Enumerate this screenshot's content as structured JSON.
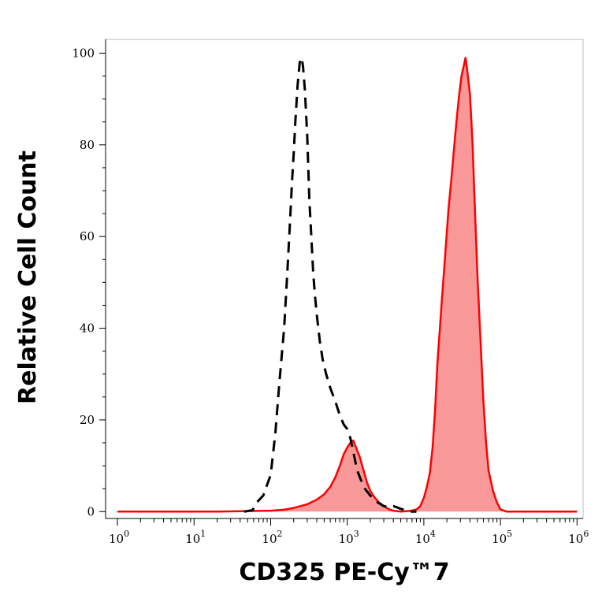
{
  "chart_data": {
    "type": "area",
    "xlabel": "CD325 PE-Cy™7",
    "ylabel": "Relative Cell Count",
    "xscale": "log",
    "xlim": [
      0.7,
      1200000
    ],
    "ylim": [
      -1.5,
      103
    ],
    "x_ticks": [
      {
        "value": 1,
        "base": "10",
        "exp": "0"
      },
      {
        "value": 10,
        "base": "10",
        "exp": "1"
      },
      {
        "value": 100,
        "base": "10",
        "exp": "2"
      },
      {
        "value": 1000,
        "base": "10",
        "exp": "3"
      },
      {
        "value": 10000,
        "base": "10",
        "exp": "4"
      },
      {
        "value": 100000,
        "base": "10",
        "exp": "5"
      },
      {
        "value": 1000000,
        "base": "10",
        "exp": "6"
      }
    ],
    "y_ticks": [
      {
        "value": 0,
        "label": "0"
      },
      {
        "value": 20,
        "label": "20"
      },
      {
        "value": 40,
        "label": "40"
      },
      {
        "value": 60,
        "label": "60"
      },
      {
        "value": 80,
        "label": "80"
      },
      {
        "value": 100,
        "label": "100"
      }
    ],
    "grid": false,
    "legend": "none",
    "series": [
      {
        "style": "dashed-line",
        "color": "#000000",
        "x": [
          45,
          58,
          66,
          80,
          100,
          115,
          130,
          150,
          165,
          180,
          190,
          200,
          210,
          225,
          240,
          255,
          265,
          280,
          300,
          320,
          340,
          360,
          380,
          400,
          440,
          480,
          530,
          600,
          700,
          800,
          900,
          1000,
          1100,
          1200,
          1350,
          1500,
          1700,
          2000,
          2500,
          3000,
          3500,
          4000,
          4500,
          5000,
          6000,
          7000,
          8000
        ],
        "y": [
          0,
          0.3,
          2,
          3.5,
          8,
          17,
          28,
          40,
          52,
          64,
          72,
          78,
          85,
          93,
          98,
          99,
          97,
          92,
          82,
          68,
          60,
          52,
          47,
          43,
          37,
          33,
          30,
          27,
          24,
          21,
          19,
          18,
          16,
          13,
          9,
          7,
          5,
          3.5,
          2,
          1.2,
          1,
          1.2,
          0.9,
          0.6,
          0.2,
          0,
          0
        ]
      },
      {
        "style": "filled",
        "color": "#ff0000",
        "fill": "#f99898",
        "x": [
          1,
          20,
          100,
          150,
          200,
          300,
          400,
          500,
          600,
          700,
          800,
          900,
          1000,
          1100,
          1200,
          1300,
          1450,
          1600,
          1800,
          2000,
          2300,
          2600,
          3000,
          3500,
          4000,
          5000,
          7000,
          8000,
          9000,
          10000,
          11000,
          12000,
          13000,
          14000,
          15000,
          17000,
          19000,
          21000,
          23000,
          25000,
          27000,
          29000,
          31000,
          33000,
          35000,
          37000,
          40000,
          43000,
          46000,
          50000,
          55000,
          60000,
          65000,
          70000,
          80000,
          90000,
          100000,
          120000,
          150000,
          200000,
          1000000
        ],
        "y": [
          0,
          0,
          0.2,
          0.4,
          0.8,
          1.6,
          2.6,
          3.8,
          5.4,
          7.5,
          10,
          12.5,
          14,
          15,
          15.5,
          14,
          12,
          9.5,
          6.5,
          4.5,
          3,
          2,
          1.2,
          0.5,
          0.2,
          0,
          0.2,
          0.5,
          1.2,
          3,
          5.5,
          8.5,
          14,
          22,
          32,
          45,
          56,
          66,
          73,
          80,
          86,
          91,
          95,
          97,
          99,
          96,
          91,
          81,
          68,
          52,
          37,
          24,
          15,
          9,
          4.5,
          2,
          0.5,
          0,
          0,
          0,
          0
        ]
      }
    ]
  }
}
